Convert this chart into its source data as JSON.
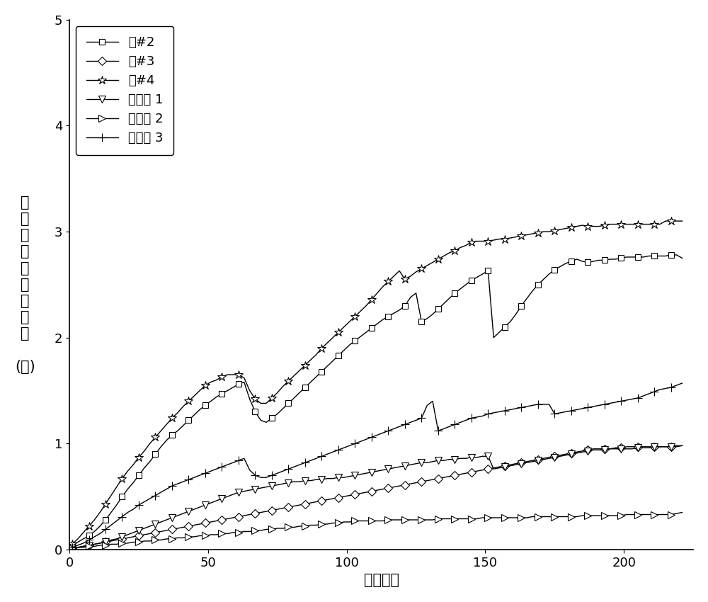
{
  "title": "",
  "xlabel": "循环次数",
  "ylabel_chars": [
    "循",
    "环",
    "老",
    "化",
    "容",
    "量",
    "衰",
    "减",
    "率",
    "",
    "(％)"
  ],
  "xlim": [
    0,
    225
  ],
  "ylim": [
    0,
    5
  ],
  "xticks": [
    0,
    50,
    100,
    150,
    200
  ],
  "yticks": [
    0,
    1,
    2,
    3,
    4,
    5
  ],
  "background_color": "#ffffff",
  "line_color": "#000000",
  "series": [
    {
      "label": "组#2",
      "marker": "s",
      "markersize": 6,
      "linewidth": 1.0,
      "markevery": 3,
      "x": [
        1,
        3,
        5,
        7,
        9,
        11,
        13,
        15,
        17,
        19,
        21,
        23,
        25,
        27,
        29,
        31,
        33,
        35,
        37,
        39,
        41,
        43,
        45,
        47,
        49,
        51,
        53,
        55,
        57,
        59,
        61,
        63,
        65,
        67,
        69,
        71,
        73,
        75,
        77,
        79,
        81,
        83,
        85,
        87,
        89,
        91,
        93,
        95,
        97,
        99,
        101,
        103,
        105,
        107,
        109,
        111,
        113,
        115,
        117,
        119,
        121,
        123,
        125,
        127,
        129,
        131,
        133,
        135,
        137,
        139,
        141,
        143,
        145,
        147,
        149,
        151,
        153,
        155,
        157,
        159,
        161,
        163,
        165,
        167,
        169,
        171,
        173,
        175,
        177,
        179,
        181,
        183,
        185,
        187,
        189,
        191,
        193,
        195,
        197,
        199,
        201,
        203,
        205,
        207,
        209,
        211,
        213,
        215,
        217,
        219,
        221
      ],
      "y": [
        0.04,
        0.07,
        0.1,
        0.13,
        0.17,
        0.22,
        0.28,
        0.35,
        0.42,
        0.5,
        0.57,
        0.63,
        0.7,
        0.77,
        0.83,
        0.9,
        0.97,
        1.03,
        1.08,
        1.12,
        1.17,
        1.22,
        1.27,
        1.32,
        1.36,
        1.4,
        1.44,
        1.47,
        1.5,
        1.53,
        1.56,
        1.58,
        1.42,
        1.3,
        1.22,
        1.2,
        1.24,
        1.28,
        1.33,
        1.38,
        1.43,
        1.48,
        1.53,
        1.58,
        1.63,
        1.68,
        1.73,
        1.78,
        1.83,
        1.88,
        1.93,
        1.97,
        2.01,
        2.05,
        2.09,
        2.13,
        2.17,
        2.2,
        2.23,
        2.26,
        2.3,
        2.38,
        2.42,
        2.15,
        2.18,
        2.22,
        2.27,
        2.32,
        2.37,
        2.42,
        2.46,
        2.5,
        2.54,
        2.57,
        2.6,
        2.63,
        2.0,
        2.05,
        2.1,
        2.15,
        2.22,
        2.3,
        2.37,
        2.44,
        2.5,
        2.55,
        2.6,
        2.64,
        2.67,
        2.7,
        2.72,
        2.74,
        2.72,
        2.71,
        2.72,
        2.73,
        2.73,
        2.74,
        2.74,
        2.75,
        2.76,
        2.76,
        2.76,
        2.76,
        2.77,
        2.77,
        2.77,
        2.77,
        2.78,
        2.78,
        2.75
      ]
    },
    {
      "label": "组#3",
      "marker": "D",
      "markersize": 6,
      "linewidth": 1.0,
      "markevery": 3,
      "x": [
        1,
        3,
        5,
        7,
        9,
        11,
        13,
        15,
        17,
        19,
        21,
        23,
        25,
        27,
        29,
        31,
        33,
        35,
        37,
        39,
        41,
        43,
        45,
        47,
        49,
        51,
        53,
        55,
        57,
        59,
        61,
        63,
        65,
        67,
        69,
        71,
        73,
        75,
        77,
        79,
        81,
        83,
        85,
        87,
        89,
        91,
        93,
        95,
        97,
        99,
        101,
        103,
        105,
        107,
        109,
        111,
        113,
        115,
        117,
        119,
        121,
        123,
        125,
        127,
        129,
        131,
        133,
        135,
        137,
        139,
        141,
        143,
        145,
        147,
        149,
        151,
        153,
        155,
        157,
        159,
        161,
        163,
        165,
        167,
        169,
        171,
        173,
        175,
        177,
        179,
        181,
        183,
        185,
        187,
        189,
        191,
        193,
        195,
        197,
        199,
        201,
        203,
        205,
        207,
        209,
        211,
        213,
        215,
        217,
        219,
        221
      ],
      "y": [
        0.01,
        0.02,
        0.03,
        0.04,
        0.05,
        0.06,
        0.07,
        0.08,
        0.09,
        0.1,
        0.11,
        0.12,
        0.13,
        0.14,
        0.15,
        0.16,
        0.17,
        0.18,
        0.19,
        0.2,
        0.21,
        0.22,
        0.23,
        0.24,
        0.25,
        0.26,
        0.27,
        0.28,
        0.29,
        0.3,
        0.31,
        0.32,
        0.33,
        0.34,
        0.35,
        0.36,
        0.37,
        0.38,
        0.39,
        0.4,
        0.41,
        0.42,
        0.43,
        0.44,
        0.45,
        0.46,
        0.47,
        0.48,
        0.49,
        0.5,
        0.51,
        0.52,
        0.53,
        0.54,
        0.55,
        0.56,
        0.57,
        0.58,
        0.59,
        0.6,
        0.61,
        0.62,
        0.63,
        0.64,
        0.65,
        0.66,
        0.67,
        0.68,
        0.69,
        0.7,
        0.71,
        0.72,
        0.73,
        0.74,
        0.75,
        0.76,
        0.77,
        0.78,
        0.79,
        0.8,
        0.81,
        0.82,
        0.83,
        0.84,
        0.85,
        0.86,
        0.87,
        0.88,
        0.89,
        0.9,
        0.91,
        0.92,
        0.93,
        0.94,
        0.95,
        0.95,
        0.95,
        0.95,
        0.96,
        0.96,
        0.97,
        0.97,
        0.97,
        0.97,
        0.97,
        0.97,
        0.97,
        0.97,
        0.97,
        0.98,
        0.98
      ]
    },
    {
      "label": "组#4",
      "marker": "*",
      "markersize": 9,
      "linewidth": 1.0,
      "markevery": 3,
      "x": [
        1,
        3,
        5,
        7,
        9,
        11,
        13,
        15,
        17,
        19,
        21,
        23,
        25,
        27,
        29,
        31,
        33,
        35,
        37,
        39,
        41,
        43,
        45,
        47,
        49,
        51,
        53,
        55,
        57,
        59,
        61,
        63,
        65,
        67,
        69,
        71,
        73,
        75,
        77,
        79,
        81,
        83,
        85,
        87,
        89,
        91,
        93,
        95,
        97,
        99,
        101,
        103,
        105,
        107,
        109,
        111,
        113,
        115,
        117,
        119,
        121,
        123,
        125,
        127,
        129,
        131,
        133,
        135,
        137,
        139,
        141,
        143,
        145,
        147,
        149,
        151,
        153,
        155,
        157,
        159,
        161,
        163,
        165,
        167,
        169,
        171,
        173,
        175,
        177,
        179,
        181,
        183,
        185,
        187,
        189,
        191,
        193,
        195,
        197,
        199,
        201,
        203,
        205,
        207,
        209,
        211,
        213,
        215,
        217,
        219,
        221
      ],
      "y": [
        0.05,
        0.1,
        0.16,
        0.22,
        0.28,
        0.35,
        0.43,
        0.51,
        0.59,
        0.67,
        0.74,
        0.8,
        0.87,
        0.93,
        1.0,
        1.06,
        1.12,
        1.18,
        1.24,
        1.29,
        1.35,
        1.4,
        1.45,
        1.5,
        1.55,
        1.58,
        1.6,
        1.63,
        1.65,
        1.65,
        1.65,
        1.62,
        1.5,
        1.42,
        1.38,
        1.38,
        1.43,
        1.48,
        1.54,
        1.59,
        1.64,
        1.69,
        1.74,
        1.79,
        1.84,
        1.9,
        1.95,
        2.0,
        2.05,
        2.1,
        2.15,
        2.2,
        2.25,
        2.3,
        2.36,
        2.42,
        2.48,
        2.53,
        2.58,
        2.63,
        2.55,
        2.58,
        2.62,
        2.65,
        2.68,
        2.71,
        2.74,
        2.77,
        2.8,
        2.82,
        2.85,
        2.87,
        2.9,
        2.91,
        2.91,
        2.91,
        2.92,
        2.93,
        2.93,
        2.94,
        2.95,
        2.96,
        2.97,
        2.98,
        2.99,
        3.0,
        3.0,
        3.01,
        3.02,
        3.03,
        3.04,
        3.05,
        3.06,
        3.05,
        3.05,
        3.05,
        3.06,
        3.07,
        3.07,
        3.07,
        3.07,
        3.07,
        3.07,
        3.07,
        3.07,
        3.07,
        3.07,
        3.1,
        3.1,
        3.1,
        3.1
      ]
    },
    {
      "label": "对比例 1",
      "marker": "v",
      "markersize": 7,
      "linewidth": 1.0,
      "markevery": 3,
      "x": [
        1,
        3,
        5,
        7,
        9,
        11,
        13,
        15,
        17,
        19,
        21,
        23,
        25,
        27,
        29,
        31,
        33,
        35,
        37,
        39,
        41,
        43,
        45,
        47,
        49,
        51,
        53,
        55,
        57,
        59,
        61,
        63,
        65,
        67,
        69,
        71,
        73,
        75,
        77,
        79,
        81,
        83,
        85,
        87,
        89,
        91,
        93,
        95,
        97,
        99,
        101,
        103,
        105,
        107,
        109,
        111,
        113,
        115,
        117,
        119,
        121,
        123,
        125,
        127,
        129,
        131,
        133,
        135,
        137,
        139,
        141,
        143,
        145,
        147,
        149,
        151,
        153,
        155,
        157,
        159,
        161,
        163,
        165,
        167,
        169,
        171,
        173,
        175,
        177,
        179,
        181,
        183,
        185,
        187,
        189,
        191,
        193,
        195,
        197,
        199,
        201,
        203,
        205,
        207,
        209,
        211,
        213,
        215,
        217,
        219,
        221
      ],
      "y": [
        0.01,
        0.02,
        0.03,
        0.04,
        0.05,
        0.06,
        0.07,
        0.09,
        0.1,
        0.12,
        0.14,
        0.16,
        0.18,
        0.2,
        0.22,
        0.24,
        0.26,
        0.28,
        0.3,
        0.32,
        0.34,
        0.36,
        0.38,
        0.4,
        0.42,
        0.44,
        0.46,
        0.48,
        0.5,
        0.52,
        0.54,
        0.55,
        0.56,
        0.57,
        0.58,
        0.59,
        0.6,
        0.61,
        0.62,
        0.63,
        0.64,
        0.64,
        0.65,
        0.65,
        0.66,
        0.66,
        0.67,
        0.67,
        0.68,
        0.68,
        0.69,
        0.7,
        0.71,
        0.72,
        0.73,
        0.74,
        0.75,
        0.76,
        0.77,
        0.78,
        0.79,
        0.8,
        0.81,
        0.82,
        0.82,
        0.83,
        0.84,
        0.84,
        0.85,
        0.85,
        0.86,
        0.86,
        0.87,
        0.87,
        0.88,
        0.88,
        0.76,
        0.77,
        0.78,
        0.79,
        0.8,
        0.81,
        0.82,
        0.83,
        0.84,
        0.85,
        0.86,
        0.87,
        0.88,
        0.89,
        0.9,
        0.91,
        0.92,
        0.93,
        0.94,
        0.94,
        0.94,
        0.95,
        0.95,
        0.95,
        0.95,
        0.95,
        0.96,
        0.96,
        0.96,
        0.97,
        0.97,
        0.97,
        0.97,
        0.97,
        0.98
      ]
    },
    {
      "label": "对比例 2",
      "marker": ">",
      "markersize": 7,
      "linewidth": 1.0,
      "markevery": 3,
      "x": [
        1,
        3,
        5,
        7,
        9,
        11,
        13,
        15,
        17,
        19,
        21,
        23,
        25,
        27,
        29,
        31,
        33,
        35,
        37,
        39,
        41,
        43,
        45,
        47,
        49,
        51,
        53,
        55,
        57,
        59,
        61,
        63,
        65,
        67,
        69,
        71,
        73,
        75,
        77,
        79,
        81,
        83,
        85,
        87,
        89,
        91,
        93,
        95,
        97,
        99,
        101,
        103,
        105,
        107,
        109,
        111,
        113,
        115,
        117,
        119,
        121,
        123,
        125,
        127,
        129,
        131,
        133,
        135,
        137,
        139,
        141,
        143,
        145,
        147,
        149,
        151,
        153,
        155,
        157,
        159,
        161,
        163,
        165,
        167,
        169,
        171,
        173,
        175,
        177,
        179,
        181,
        183,
        185,
        187,
        189,
        191,
        193,
        195,
        197,
        199,
        201,
        203,
        205,
        207,
        209,
        211,
        213,
        215,
        217,
        219,
        221
      ],
      "y": [
        0.01,
        0.02,
        0.02,
        0.03,
        0.03,
        0.04,
        0.04,
        0.05,
        0.05,
        0.06,
        0.06,
        0.07,
        0.07,
        0.08,
        0.08,
        0.09,
        0.09,
        0.1,
        0.1,
        0.11,
        0.11,
        0.12,
        0.12,
        0.13,
        0.13,
        0.14,
        0.14,
        0.15,
        0.15,
        0.16,
        0.16,
        0.17,
        0.17,
        0.18,
        0.18,
        0.19,
        0.19,
        0.2,
        0.2,
        0.21,
        0.21,
        0.22,
        0.22,
        0.23,
        0.23,
        0.24,
        0.24,
        0.25,
        0.25,
        0.26,
        0.26,
        0.27,
        0.27,
        0.27,
        0.27,
        0.27,
        0.27,
        0.28,
        0.28,
        0.28,
        0.28,
        0.28,
        0.28,
        0.28,
        0.28,
        0.28,
        0.29,
        0.29,
        0.29,
        0.29,
        0.29,
        0.29,
        0.29,
        0.29,
        0.3,
        0.3,
        0.3,
        0.3,
        0.3,
        0.3,
        0.3,
        0.3,
        0.3,
        0.31,
        0.31,
        0.31,
        0.31,
        0.31,
        0.31,
        0.31,
        0.31,
        0.31,
        0.32,
        0.32,
        0.32,
        0.32,
        0.32,
        0.32,
        0.32,
        0.32,
        0.33,
        0.33,
        0.33,
        0.33,
        0.33,
        0.33,
        0.33,
        0.33,
        0.33,
        0.34,
        0.35
      ]
    },
    {
      "label": "对比例 3",
      "marker": "+",
      "markersize": 8,
      "linewidth": 1.0,
      "markevery": 3,
      "x": [
        1,
        3,
        5,
        7,
        9,
        11,
        13,
        15,
        17,
        19,
        21,
        23,
        25,
        27,
        29,
        31,
        33,
        35,
        37,
        39,
        41,
        43,
        45,
        47,
        49,
        51,
        53,
        55,
        57,
        59,
        61,
        63,
        65,
        67,
        69,
        71,
        73,
        75,
        77,
        79,
        81,
        83,
        85,
        87,
        89,
        91,
        93,
        95,
        97,
        99,
        101,
        103,
        105,
        107,
        109,
        111,
        113,
        115,
        117,
        119,
        121,
        123,
        125,
        127,
        129,
        131,
        133,
        135,
        137,
        139,
        141,
        143,
        145,
        147,
        149,
        151,
        153,
        155,
        157,
        159,
        161,
        163,
        165,
        167,
        169,
        171,
        173,
        175,
        177,
        179,
        181,
        183,
        185,
        187,
        189,
        191,
        193,
        195,
        197,
        199,
        201,
        203,
        205,
        207,
        209,
        211,
        213,
        215,
        217,
        219,
        221
      ],
      "y": [
        0.02,
        0.04,
        0.06,
        0.09,
        0.12,
        0.15,
        0.19,
        0.23,
        0.27,
        0.31,
        0.35,
        0.38,
        0.42,
        0.45,
        0.48,
        0.51,
        0.54,
        0.57,
        0.6,
        0.62,
        0.64,
        0.66,
        0.68,
        0.7,
        0.72,
        0.74,
        0.76,
        0.78,
        0.8,
        0.82,
        0.84,
        0.86,
        0.75,
        0.7,
        0.68,
        0.68,
        0.7,
        0.72,
        0.74,
        0.76,
        0.78,
        0.8,
        0.82,
        0.84,
        0.86,
        0.88,
        0.9,
        0.92,
        0.94,
        0.96,
        0.98,
        1.0,
        1.02,
        1.04,
        1.06,
        1.08,
        1.1,
        1.12,
        1.14,
        1.16,
        1.18,
        1.2,
        1.22,
        1.24,
        1.36,
        1.4,
        1.12,
        1.14,
        1.16,
        1.18,
        1.2,
        1.22,
        1.24,
        1.25,
        1.26,
        1.28,
        1.29,
        1.3,
        1.31,
        1.32,
        1.33,
        1.34,
        1.35,
        1.36,
        1.37,
        1.37,
        1.37,
        1.28,
        1.29,
        1.3,
        1.31,
        1.32,
        1.33,
        1.34,
        1.35,
        1.36,
        1.37,
        1.38,
        1.39,
        1.4,
        1.41,
        1.42,
        1.43,
        1.45,
        1.47,
        1.49,
        1.51,
        1.52,
        1.53,
        1.55,
        1.57
      ]
    }
  ],
  "legend_loc": "upper left",
  "legend_fontsize": 13,
  "axis_fontsize": 15,
  "tick_fontsize": 13
}
